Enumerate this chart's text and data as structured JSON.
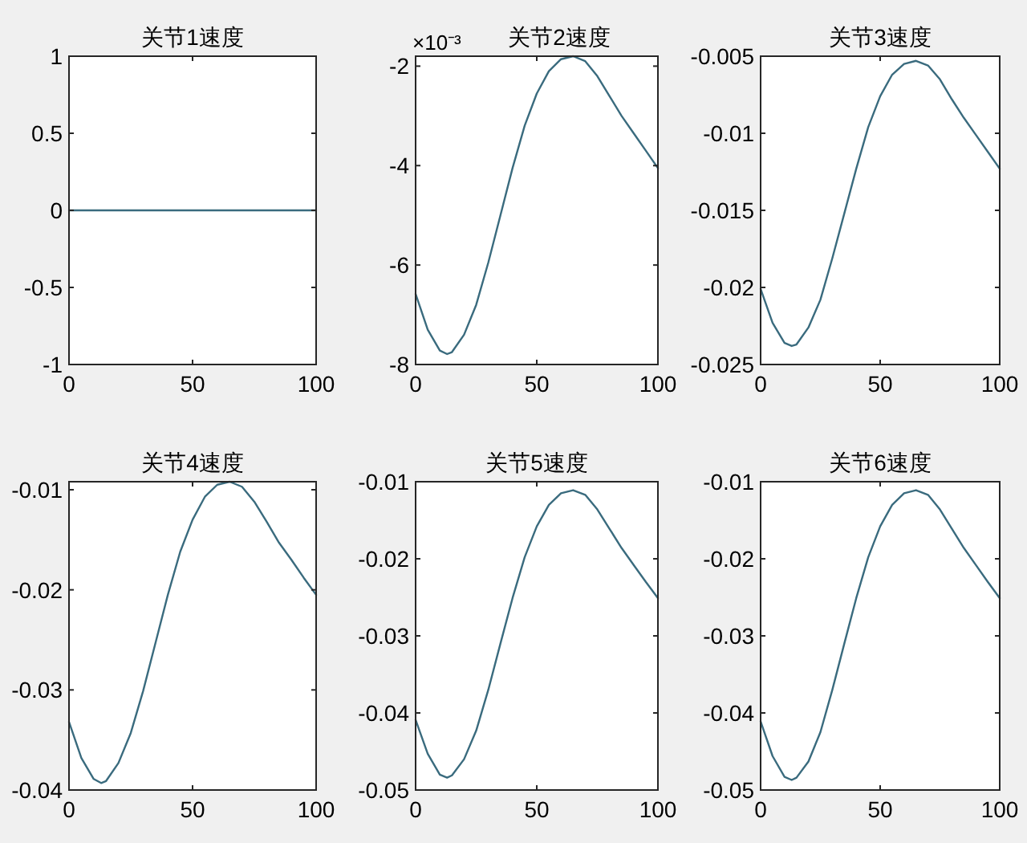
{
  "chart_data": [
    {
      "type": "line",
      "title": "关节1速度",
      "xlim": [
        0,
        100
      ],
      "xticks": [
        0,
        50,
        100
      ],
      "ylim": [
        -1,
        1
      ],
      "yticks": [
        -1,
        -0.5,
        0,
        0.5,
        1
      ],
      "series": [
        {
          "color": "#3a6b7e",
          "x": [
            0,
            100
          ],
          "values": [
            0,
            0
          ]
        }
      ]
    },
    {
      "type": "line",
      "title": "关节2速度",
      "annotations": [
        "×10⁻³"
      ],
      "xlim": [
        0,
        100
      ],
      "xticks": [
        0,
        50,
        100
      ],
      "ylim": [
        -8,
        -1.8
      ],
      "yticks": [
        -8,
        -6,
        -4,
        -2
      ],
      "series": [
        {
          "color": "#3a6b7e",
          "x": [
            0,
            5,
            10,
            13,
            15,
            20,
            25,
            30,
            35,
            40,
            45,
            50,
            55,
            60,
            65,
            70,
            75,
            80,
            85,
            90,
            95,
            100
          ],
          "values": [
            -6.58,
            -7.3,
            -7.72,
            -7.79,
            -7.75,
            -7.4,
            -6.8,
            -5.95,
            -5.0,
            -4.05,
            -3.2,
            -2.55,
            -2.1,
            -1.86,
            -1.8,
            -1.9,
            -2.2,
            -2.6,
            -3.0,
            -3.35,
            -3.7,
            -4.05
          ]
        }
      ]
    },
    {
      "type": "line",
      "title": "关节3速度",
      "xlim": [
        0,
        100
      ],
      "xticks": [
        0,
        50,
        100
      ],
      "ylim": [
        -0.025,
        -0.005
      ],
      "yticks": [
        -0.025,
        -0.02,
        -0.015,
        -0.01,
        -0.005
      ],
      "series": [
        {
          "color": "#3a6b7e",
          "x": [
            0,
            5,
            10,
            13,
            15,
            20,
            25,
            30,
            35,
            40,
            45,
            50,
            55,
            60,
            65,
            70,
            75,
            80,
            85,
            90,
            95,
            100
          ],
          "values": [
            -0.0201,
            -0.0223,
            -0.0236,
            -0.0238,
            -0.0237,
            -0.0226,
            -0.0208,
            -0.0181,
            -0.0152,
            -0.0123,
            -0.0096,
            -0.0076,
            -0.0062,
            -0.0055,
            -0.0053,
            -0.0056,
            -0.0065,
            -0.0078,
            -0.009,
            -0.0101,
            -0.0112,
            -0.0123
          ]
        }
      ]
    },
    {
      "type": "line",
      "title": "关节4速度",
      "xlim": [
        0,
        100
      ],
      "xticks": [
        0,
        50,
        100
      ],
      "ylim": [
        -0.04,
        -0.0092
      ],
      "yticks": [
        -0.04,
        -0.03,
        -0.02,
        -0.01
      ],
      "series": [
        {
          "color": "#3a6b7e",
          "x": [
            0,
            5,
            10,
            13,
            15,
            20,
            25,
            30,
            35,
            40,
            45,
            50,
            55,
            60,
            65,
            70,
            75,
            80,
            85,
            90,
            95,
            100
          ],
          "values": [
            -0.0332,
            -0.0368,
            -0.0389,
            -0.0393,
            -0.0391,
            -0.0373,
            -0.0343,
            -0.0301,
            -0.0253,
            -0.0205,
            -0.0162,
            -0.013,
            -0.0107,
            -0.0095,
            -0.0092,
            -0.0097,
            -0.0112,
            -0.0132,
            -0.0153,
            -0.017,
            -0.0188,
            -0.0205
          ]
        }
      ]
    },
    {
      "type": "line",
      "title": "关节5速度",
      "xlim": [
        0,
        100
      ],
      "xticks": [
        0,
        50,
        100
      ],
      "ylim": [
        -0.05,
        -0.01
      ],
      "yticks": [
        -0.05,
        -0.04,
        -0.03,
        -0.02,
        -0.01
      ],
      "series": [
        {
          "color": "#3a6b7e",
          "x": [
            0,
            5,
            10,
            13,
            15,
            20,
            25,
            30,
            35,
            40,
            45,
            50,
            55,
            60,
            65,
            70,
            75,
            80,
            85,
            90,
            95,
            100
          ],
          "values": [
            -0.0409,
            -0.0453,
            -0.048,
            -0.0484,
            -0.0481,
            -0.046,
            -0.0423,
            -0.037,
            -0.031,
            -0.0251,
            -0.0198,
            -0.0158,
            -0.013,
            -0.0115,
            -0.0111,
            -0.0117,
            -0.0136,
            -0.0161,
            -0.0186,
            -0.0208,
            -0.023,
            -0.0251
          ]
        }
      ]
    },
    {
      "type": "line",
      "title": "关节6速度",
      "xlim": [
        0,
        100
      ],
      "xticks": [
        0,
        50,
        100
      ],
      "ylim": [
        -0.05,
        -0.01
      ],
      "yticks": [
        -0.05,
        -0.04,
        -0.03,
        -0.02,
        -0.01
      ],
      "series": [
        {
          "color": "#3a6b7e",
          "x": [
            0,
            5,
            10,
            13,
            15,
            20,
            25,
            30,
            35,
            40,
            45,
            50,
            55,
            60,
            65,
            70,
            75,
            80,
            85,
            90,
            95,
            100
          ],
          "values": [
            -0.0411,
            -0.0456,
            -0.0483,
            -0.0487,
            -0.0484,
            -0.0463,
            -0.0425,
            -0.037,
            -0.031,
            -0.0251,
            -0.0198,
            -0.0158,
            -0.013,
            -0.0115,
            -0.0111,
            -0.0117,
            -0.0136,
            -0.0161,
            -0.0186,
            -0.0208,
            -0.023,
            -0.0251
          ]
        }
      ]
    }
  ]
}
